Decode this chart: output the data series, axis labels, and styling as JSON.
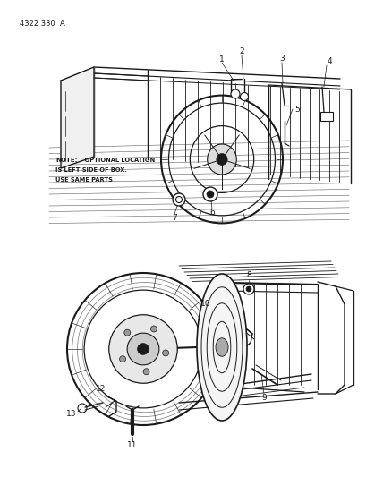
{
  "title": "4322 330  A",
  "background_color": "#ffffff",
  "line_color": "#1a1a1a",
  "text_color": "#1a1a1a",
  "figsize": [
    4.1,
    5.33
  ],
  "dpi": 100,
  "top_diagram": {
    "note_bold": "NOTE:",
    "note_text": "  OPTIONAL LOCATION\nIS LEFT SIDE OF BOX.\nUSE SAME PARTS"
  }
}
